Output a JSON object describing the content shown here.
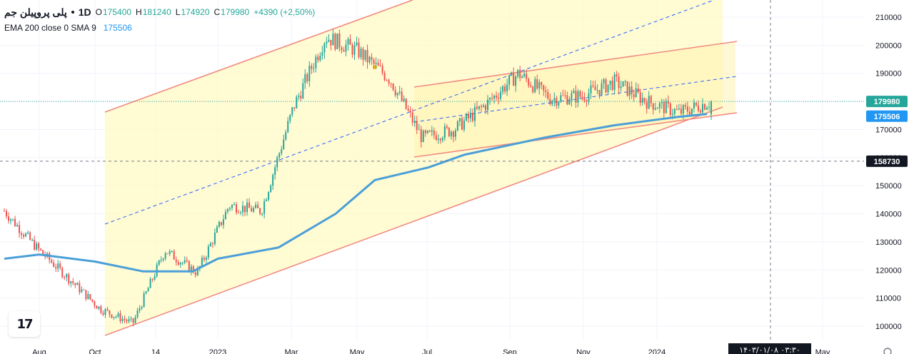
{
  "header": {
    "symbol": "پلی پروپیلن جم",
    "interval": "1D",
    "open_label": "O",
    "open": "175400",
    "high_label": "H",
    "high": "181240",
    "low_label": "L",
    "low": "174920",
    "close_label": "C",
    "close": "179980",
    "change": "+4390 (+2,50%)",
    "indicators_label": "EMA 200 close 0 SMA 9",
    "indicators_value": "175506"
  },
  "price_tags": {
    "last": "179980",
    "ema": "175506",
    "crosshair": "158730"
  },
  "bottom_date_label": "۱۴۰۳/۰۱/۰۸ ۰۳:۳۰",
  "colors": {
    "up": "#26a69a",
    "down": "#ef5350",
    "ema": "#4a9fd8",
    "channel": "#f28b82",
    "channel_fill": "#fff9c4",
    "dashed": "#2962ff"
  },
  "chart_data": {
    "type": "candlestick",
    "y_axis_ticks": [
      100000,
      110000,
      120000,
      130000,
      140000,
      150000,
      160000,
      170000,
      180000,
      190000,
      200000,
      210000
    ],
    "x_axis_ticks": [
      "Aug",
      "Oct",
      "14",
      "2023",
      "Mar",
      "May",
      "Jul",
      "Sep",
      "Nov",
      "2024",
      "May"
    ],
    "ylim": [
      96000,
      216000
    ],
    "price_path": [
      {
        "date": "2022-07",
        "price": 141000
      },
      {
        "date": "2022-08",
        "price": 128000
      },
      {
        "date": "2022-09",
        "price": 117000
      },
      {
        "date": "2022-10",
        "price": 106000
      },
      {
        "date": "2022-11",
        "price": 101000
      },
      {
        "date": "2022-11b",
        "price": 127000
      },
      {
        "date": "2022-12",
        "price": 119000
      },
      {
        "date": "2023-01",
        "price": 143000
      },
      {
        "date": "2023-02",
        "price": 141000
      },
      {
        "date": "2023-03",
        "price": 178000
      },
      {
        "date": "2023-04",
        "price": 203000
      },
      {
        "date": "2023-05",
        "price": 198000
      },
      {
        "date": "2023-05b",
        "price": 188000
      },
      {
        "date": "2023-06",
        "price": 167000
      },
      {
        "date": "2023-07",
        "price": 170000
      },
      {
        "date": "2023-08",
        "price": 179000
      },
      {
        "date": "2023-09",
        "price": 190000
      },
      {
        "date": "2023-10",
        "price": 181000
      },
      {
        "date": "2023-11",
        "price": 182000
      },
      {
        "date": "2023-12",
        "price": 187000
      },
      {
        "date": "2024-01",
        "price": 180000
      },
      {
        "date": "2024-02",
        "price": 176000
      },
      {
        "date": "2024-02b",
        "price": 179980
      }
    ],
    "ema_200_path": [
      {
        "date": "2022-07",
        "value": 124000
      },
      {
        "date": "2022-08",
        "value": 125500
      },
      {
        "date": "2022-10",
        "value": 123000
      },
      {
        "date": "2022-11",
        "value": 119500
      },
      {
        "date": "2023-01",
        "value": 119500
      },
      {
        "date": "2023-02",
        "value": 124000
      },
      {
        "date": "2023-03",
        "value": 128000
      },
      {
        "date": "2023-04",
        "value": 140000
      },
      {
        "date": "2023-05",
        "value": 152000
      },
      {
        "date": "2023-06",
        "value": 156500
      },
      {
        "date": "2023-08",
        "value": 161000
      },
      {
        "date": "2023-09",
        "value": 167000
      },
      {
        "date": "2023-11",
        "value": 171500
      },
      {
        "date": "2024-01",
        "value": 174500
      },
      {
        "date": "2024-02",
        "value": 175506
      }
    ]
  }
}
